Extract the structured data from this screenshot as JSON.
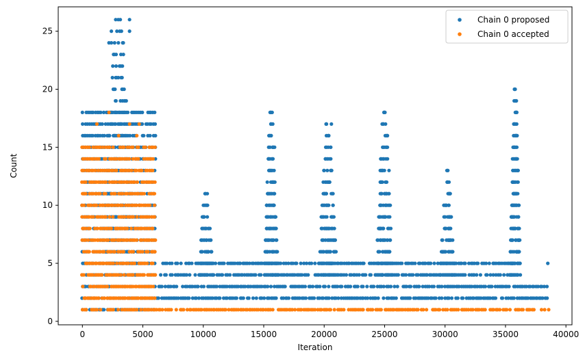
{
  "chart_data": {
    "type": "scatter",
    "xlabel": "Iteration",
    "ylabel": "Count",
    "xlim": [
      -2000,
      40500
    ],
    "ylim": [
      -0.3,
      27.1
    ],
    "x_ticks": [
      0,
      5000,
      10000,
      15000,
      20000,
      25000,
      30000,
      35000,
      40000
    ],
    "y_ticks": [
      0,
      5,
      10,
      15,
      20,
      25
    ],
    "legend_position": "top-right",
    "grid": false,
    "series": [
      {
        "name": "Chain 0 proposed",
        "color": "#1f77b4",
        "bands": [
          {
            "x_range": [
              0,
              6000
            ],
            "counts": [
              1,
              2,
              3,
              4,
              5,
              6,
              7,
              8,
              9,
              10,
              11,
              12,
              13,
              14,
              15,
              16,
              17,
              18
            ]
          },
          {
            "x_range": [
              6000,
              38500
            ],
            "counts": [
              2,
              3
            ]
          },
          {
            "x_range": [
              6500,
              35800
            ],
            "counts": [
              4,
              5
            ]
          }
        ],
        "peaks": [
          {
            "x_center": 3000,
            "spread": 3000,
            "max": 26
          },
          {
            "x_center": 10200,
            "spread": 1300,
            "max": 11
          },
          {
            "x_center": 15600,
            "spread": 1200,
            "max": 18
          },
          {
            "x_center": 20300,
            "spread": 1600,
            "max": 17
          },
          {
            "x_center": 25000,
            "spread": 1500,
            "max": 18
          },
          {
            "x_center": 30200,
            "spread": 1300,
            "max": 13
          },
          {
            "x_center": 35800,
            "spread": 900,
            "max": 20
          }
        ],
        "highlights": [
          {
            "x": 3900,
            "y": 26
          },
          {
            "x": 3900,
            "y": 25
          },
          {
            "x": 2400,
            "y": 25
          },
          {
            "x": 2200,
            "y": 24
          },
          {
            "x": 2400,
            "y": 24
          },
          {
            "x": 35800,
            "y": 20
          },
          {
            "x": 35900,
            "y": 19
          },
          {
            "x": 15600,
            "y": 18
          },
          {
            "x": 25000,
            "y": 18
          },
          {
            "x": 20600,
            "y": 17
          },
          {
            "x": 24800,
            "y": 17
          },
          {
            "x": 15900,
            "y": 15
          },
          {
            "x": 38500,
            "y": 5
          },
          {
            "x": 38000,
            "y": 3
          }
        ]
      },
      {
        "name": "Chain 0 accepted",
        "color": "#ff7f0e",
        "bands": [
          {
            "x_range": [
              0,
              6000
            ],
            "counts": [
              1,
              2,
              3,
              4,
              5,
              6,
              7,
              8,
              9,
              10,
              11,
              12,
              13,
              14,
              15
            ]
          },
          {
            "x_range": [
              6000,
              38600
            ],
            "counts": [
              1
            ]
          }
        ],
        "highlights": [
          {
            "x": 2200,
            "y": 18
          },
          {
            "x": 3900,
            "y": 17
          },
          {
            "x": 4700,
            "y": 17
          },
          {
            "x": 1200,
            "y": 17
          },
          {
            "x": 3000,
            "y": 16
          },
          {
            "x": 4500,
            "y": 16
          }
        ]
      }
    ]
  }
}
